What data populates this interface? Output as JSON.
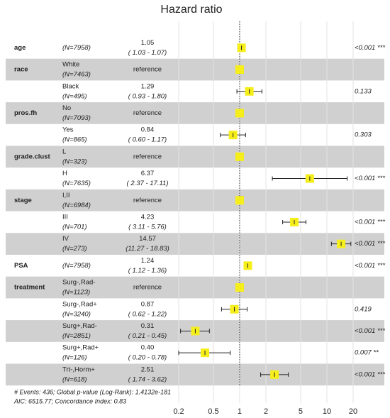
{
  "chart_data": {
    "type": "forest",
    "title": "Hazard ratio",
    "xlog": true,
    "xlim": [
      0.2,
      20
    ],
    "xticks": [
      0.2,
      0.5,
      1,
      2,
      5,
      10,
      20
    ],
    "reference_line": 1,
    "marker_color": "#f5ee1a",
    "rows": [
      {
        "variable": "age",
        "level": null,
        "n": "(N=7958)",
        "estimate": 1.05,
        "estimate_label": "1.05",
        "ci": [
          1.03,
          1.07
        ],
        "ci_label": "( 1.03 - 1.07)",
        "p": "<0.001 ***"
      },
      {
        "variable": "race",
        "level": "White",
        "n": "(N=7463)",
        "estimate": 1,
        "estimate_label": "reference",
        "ci": null,
        "ci_label": null,
        "p": null
      },
      {
        "variable": null,
        "level": "Black",
        "n": "(N=495)",
        "estimate": 1.29,
        "estimate_label": "1.29",
        "ci": [
          0.93,
          1.8
        ],
        "ci_label": "( 0.93 - 1.80)",
        "p": "0.133"
      },
      {
        "variable": "pros.fh",
        "level": "No",
        "n": "(N=7093)",
        "estimate": 1,
        "estimate_label": "reference",
        "ci": null,
        "ci_label": null,
        "p": null
      },
      {
        "variable": null,
        "level": "Yes",
        "n": "(N=865)",
        "estimate": 0.84,
        "estimate_label": "0.84",
        "ci": [
          0.6,
          1.17
        ],
        "ci_label": "( 0.60 - 1.17)",
        "p": "0.303"
      },
      {
        "variable": "grade.clust",
        "level": "L",
        "n": "(N=323)",
        "estimate": 1,
        "estimate_label": "reference",
        "ci": null,
        "ci_label": null,
        "p": null
      },
      {
        "variable": null,
        "level": "H",
        "n": "(N=7635)",
        "estimate": 6.37,
        "estimate_label": "6.37",
        "ci": [
          2.37,
          17.11
        ],
        "ci_label": "( 2.37 - 17.11)",
        "p": "<0.001 ***"
      },
      {
        "variable": "stage",
        "level": "I,II",
        "n": "(N=6984)",
        "estimate": 1,
        "estimate_label": "reference",
        "ci": null,
        "ci_label": null,
        "p": null
      },
      {
        "variable": null,
        "level": "III",
        "n": "(N=701)",
        "estimate": 4.23,
        "estimate_label": "4.23",
        "ci": [
          3.11,
          5.76
        ],
        "ci_label": "( 3.11 - 5.76)",
        "p": "<0.001 ***"
      },
      {
        "variable": null,
        "level": "IV",
        "n": "(N=273)",
        "estimate": 14.57,
        "estimate_label": "14.57",
        "ci": [
          11.27,
          18.83
        ],
        "ci_label": "(11.27 - 18.83)",
        "p": "<0.001 ***"
      },
      {
        "variable": "PSA",
        "level": null,
        "n": "(N=7958)",
        "estimate": 1.24,
        "estimate_label": "1.24",
        "ci": [
          1.12,
          1.36
        ],
        "ci_label": "( 1.12 - 1.36)",
        "p": "<0.001 ***"
      },
      {
        "variable": "treatment",
        "level": "Surg-,Rad-",
        "n": "(N=1123)",
        "estimate": 1,
        "estimate_label": "reference",
        "ci": null,
        "ci_label": null,
        "p": null
      },
      {
        "variable": null,
        "level": "Surg-,Rad+",
        "n": "(N=3240)",
        "estimate": 0.87,
        "estimate_label": "0.87",
        "ci": [
          0.62,
          1.22
        ],
        "ci_label": "( 0.62 - 1.22)",
        "p": "0.419"
      },
      {
        "variable": null,
        "level": "Surg+,Rad-",
        "n": "(N=2851)",
        "estimate": 0.31,
        "estimate_label": "0.31",
        "ci": [
          0.21,
          0.45
        ],
        "ci_label": "( 0.21 - 0.45)",
        "p": "<0.001 ***"
      },
      {
        "variable": null,
        "level": "Surg+,Rad+",
        "n": "(N=126)",
        "estimate": 0.4,
        "estimate_label": "0.40",
        "ci": [
          0.2,
          0.78
        ],
        "ci_label": "( 0.20 - 0.78)",
        "p": "0.007 **"
      },
      {
        "variable": null,
        "level": "Trt-,Horm+",
        "n": "(N=618)",
        "estimate": 2.51,
        "estimate_label": "2.51",
        "ci": [
          1.74,
          3.62
        ],
        "ci_label": "( 1.74 - 3.62)",
        "p": "<0.001 ***"
      }
    ],
    "footnotes": [
      "# Events: 436; Global p-value (Log-Rank): 1.4132e-181",
      "AIC: 6515.77; Concordance Index: 0.83"
    ]
  }
}
